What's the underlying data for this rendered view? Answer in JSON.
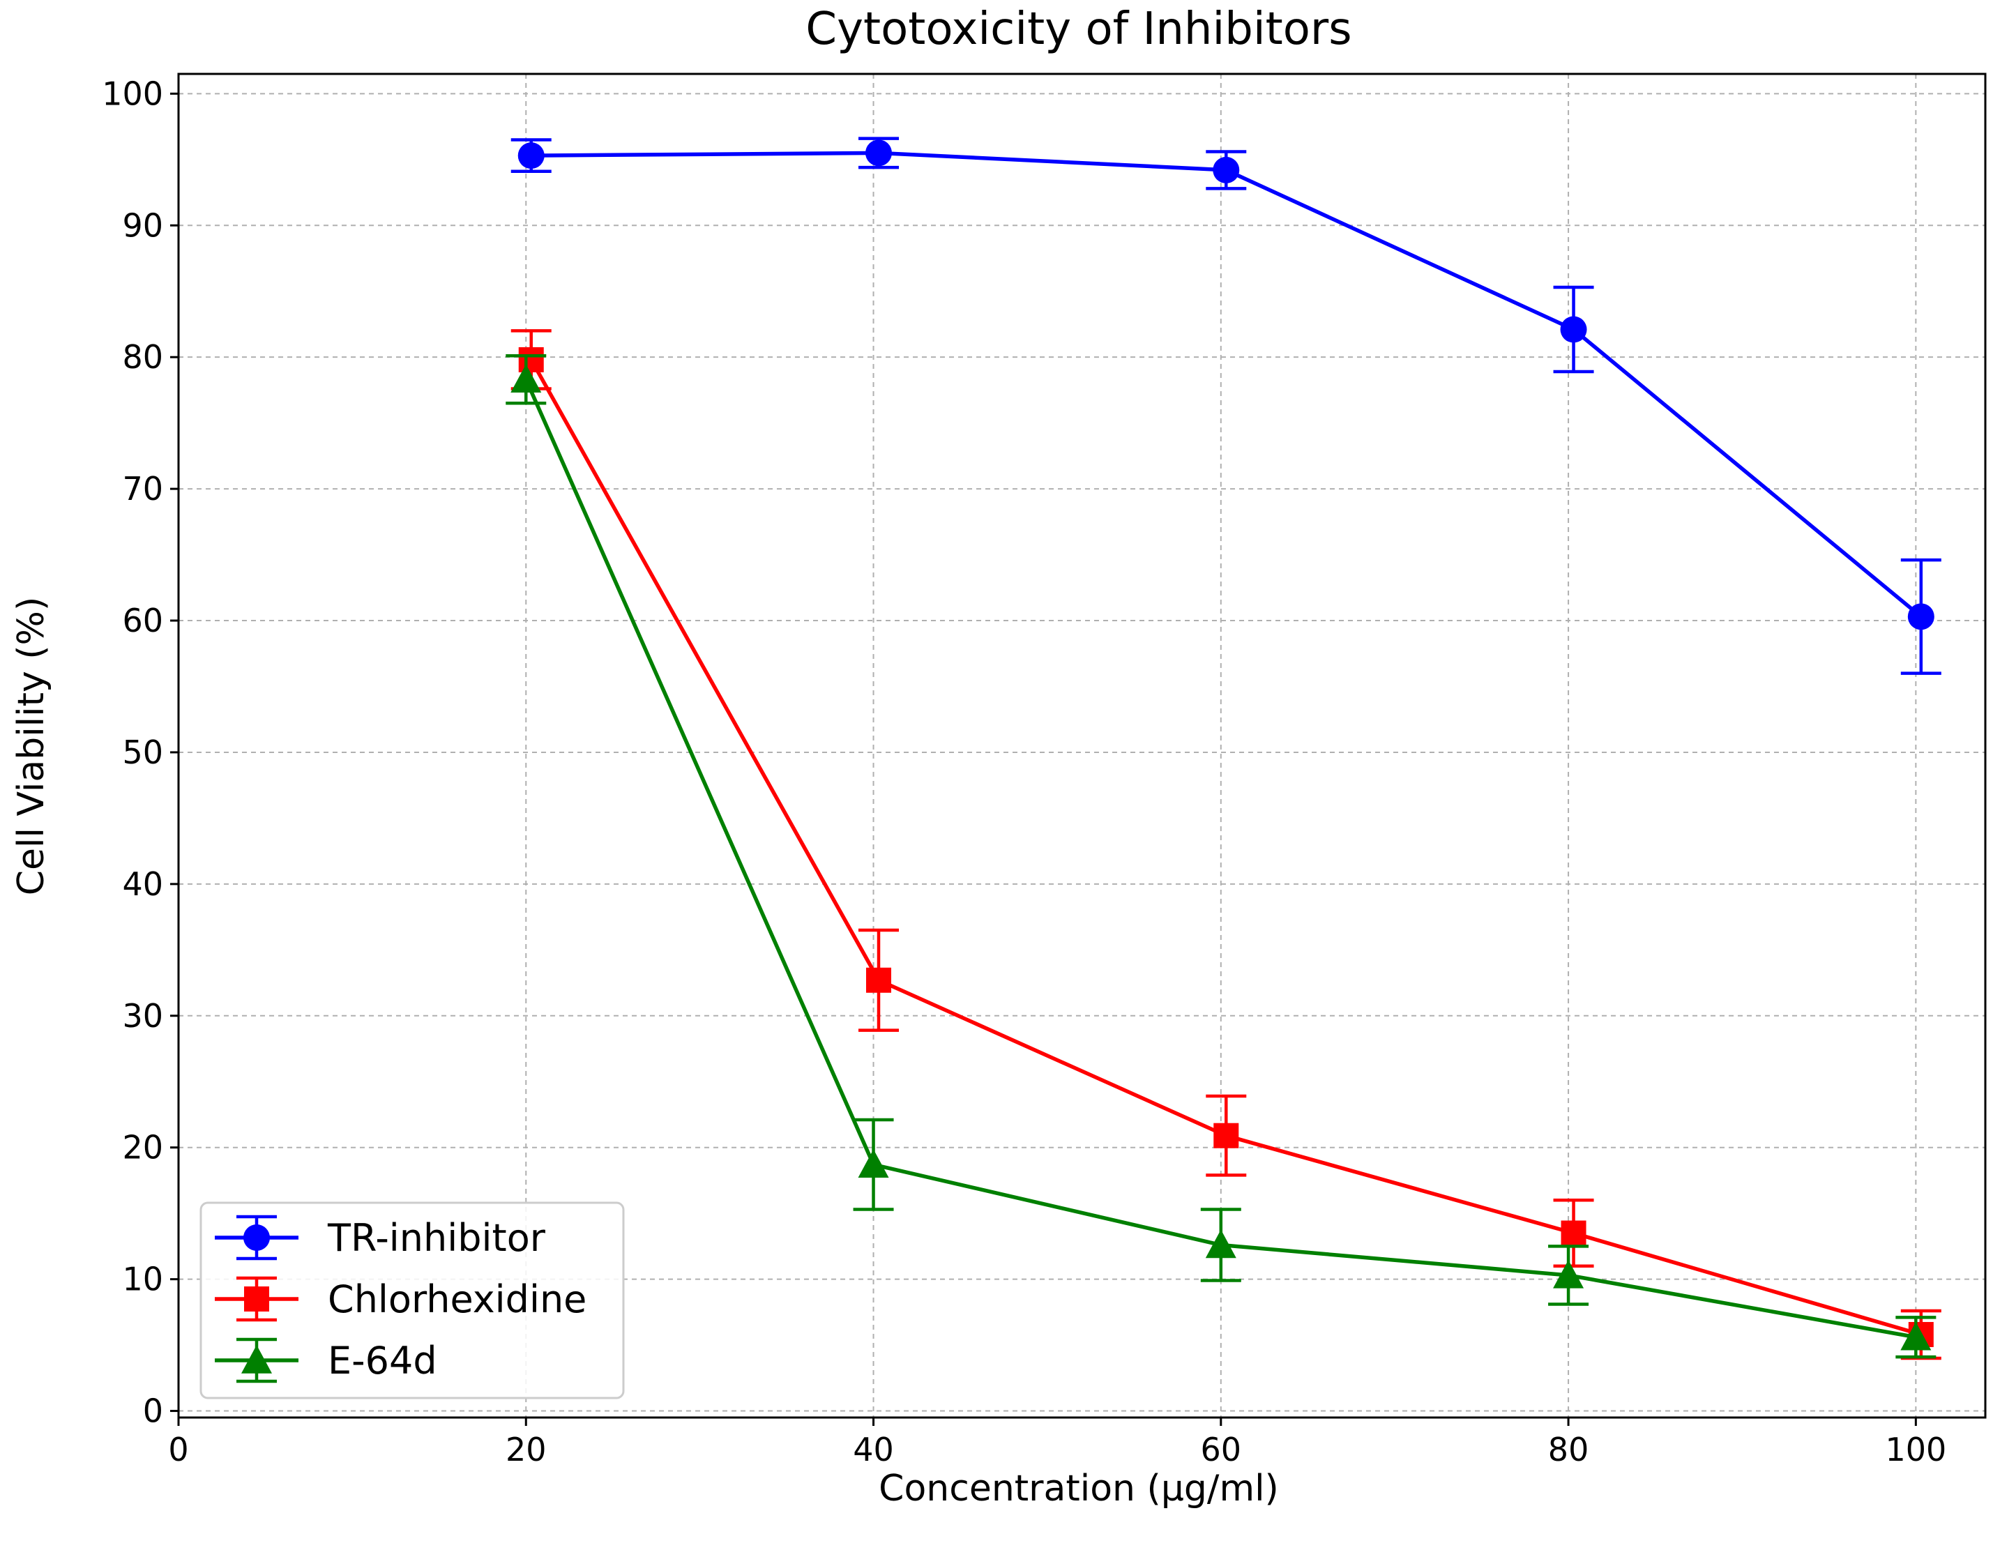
{
  "chart_data": {
    "type": "line",
    "title": "Cytotoxicity of Inhibitors",
    "xlabel": "Concentration (μg/ml)",
    "ylabel": "Cell Viability (%)",
    "xlim": [
      0,
      104
    ],
    "ylim": [
      -0.5,
      101.5
    ],
    "xticks": [
      0,
      20,
      40,
      60,
      80,
      100
    ],
    "yticks": [
      0,
      10,
      20,
      30,
      40,
      50,
      60,
      70,
      80,
      90,
      100
    ],
    "grid": true,
    "legend_position": "bottom-left",
    "series": [
      {
        "name": "TR-inhibitor",
        "color": "#0000ff",
        "marker": "circle",
        "x": [
          20.3,
          40.3,
          60.3,
          80.3,
          100.3
        ],
        "y": [
          95.3,
          95.5,
          94.2,
          82.1,
          60.3
        ],
        "err": [
          1.2,
          1.1,
          1.4,
          3.2,
          4.3
        ]
      },
      {
        "name": "Chlorhexidine",
        "color": "#ff0000",
        "marker": "square",
        "x": [
          20.3,
          40.3,
          60.3,
          80.3,
          100.3
        ],
        "y": [
          79.8,
          32.7,
          20.9,
          13.5,
          5.8
        ],
        "err": [
          2.2,
          3.8,
          3.0,
          2.5,
          1.8
        ]
      },
      {
        "name": "E-64d",
        "color": "#008000",
        "marker": "triangle",
        "x": [
          20.0,
          40.0,
          60.0,
          80.0,
          100.0
        ],
        "y": [
          78.3,
          18.7,
          12.6,
          10.3,
          5.6
        ],
        "err": [
          1.8,
          3.4,
          2.7,
          2.2,
          1.5
        ]
      }
    ]
  }
}
